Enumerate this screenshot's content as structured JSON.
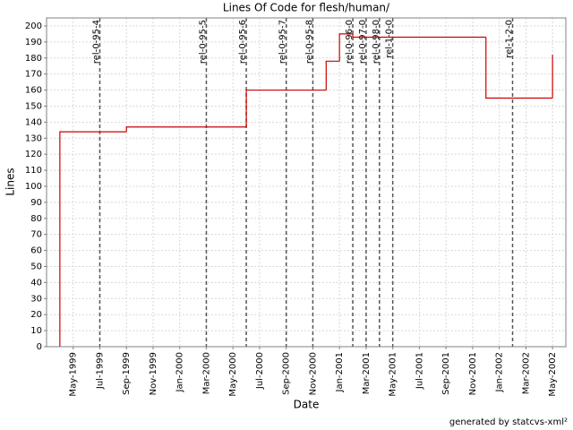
{
  "chart_data": {
    "type": "step-line",
    "title": "Lines Of Code for flesh/human/",
    "x_label": "Date",
    "y_label": "Lines",
    "footer": "generated by statcvs-xml²",
    "grid": true,
    "series": [
      {
        "name": "Lines",
        "color": "#cc0000",
        "x": [
          "1999-04",
          "1999-04",
          "1999-09",
          "2000-06",
          "2000-12",
          "2001-01",
          "2001-02",
          "2001-12",
          "2002-05"
        ],
        "values": [
          0,
          134,
          137,
          160,
          178,
          195,
          193,
          155,
          182
        ]
      }
    ],
    "releases": [
      {
        "name": "rel-0-95-4",
        "x": "1999-07"
      },
      {
        "name": "rel-0-95-5",
        "x": "2000-03"
      },
      {
        "name": "rel-0-95-6",
        "x": "2000-06"
      },
      {
        "name": "rel-0-95-7",
        "x": "2000-09"
      },
      {
        "name": "rel-0-95-8",
        "x": "2000-11"
      },
      {
        "name": "rel-0-96-0",
        "x": "2001-02"
      },
      {
        "name": "rel-0-97-0",
        "x": "2001-03"
      },
      {
        "name": "rel-0-98-0",
        "x": "2001-04"
      },
      {
        "name": "rel-1-0-0",
        "x": "2001-05"
      },
      {
        "name": "rel-1-2-0",
        "x": "2002-02"
      }
    ],
    "xlim": [
      "1999-03",
      "2002-06"
    ],
    "xticks": [
      {
        "value": "1999-05",
        "label": "May-1999"
      },
      {
        "value": "1999-07",
        "label": "Jul-1999"
      },
      {
        "value": "1999-09",
        "label": "Sep-1999"
      },
      {
        "value": "1999-11",
        "label": "Nov-1999"
      },
      {
        "value": "2000-01",
        "label": "Jan-2000"
      },
      {
        "value": "2000-03",
        "label": "Mar-2000"
      },
      {
        "value": "2000-05",
        "label": "May-2000"
      },
      {
        "value": "2000-07",
        "label": "Jul-2000"
      },
      {
        "value": "2000-09",
        "label": "Sep-2000"
      },
      {
        "value": "2000-11",
        "label": "Nov-2000"
      },
      {
        "value": "2001-01",
        "label": "Jan-2001"
      },
      {
        "value": "2001-03",
        "label": "Mar-2001"
      },
      {
        "value": "2001-05",
        "label": "May-2001"
      },
      {
        "value": "2001-07",
        "label": "Jul-2001"
      },
      {
        "value": "2001-09",
        "label": "Sep-2001"
      },
      {
        "value": "2001-11",
        "label": "Nov-2001"
      },
      {
        "value": "2002-01",
        "label": "Jan-2002"
      },
      {
        "value": "2002-03",
        "label": "Mar-2002"
      },
      {
        "value": "2002-05",
        "label": "May-2002"
      }
    ],
    "ylim": [
      0,
      205
    ],
    "yticks": [
      0,
      10,
      20,
      30,
      40,
      50,
      60,
      70,
      80,
      90,
      100,
      110,
      120,
      130,
      140,
      150,
      160,
      170,
      180,
      190,
      200
    ]
  }
}
